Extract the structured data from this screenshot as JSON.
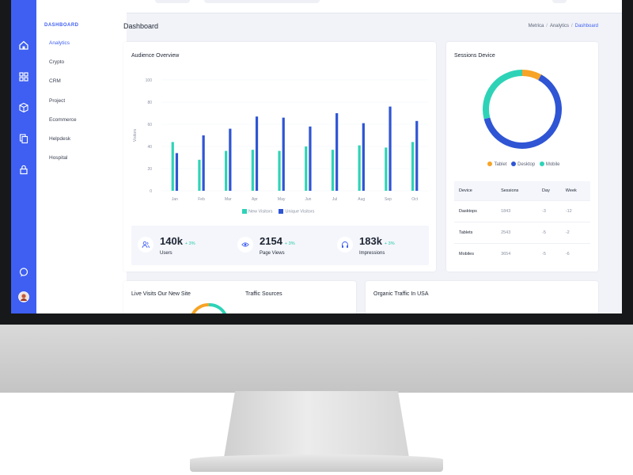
{
  "menu": {
    "section_label": "DASHBOARD",
    "items": [
      {
        "label": "Analytics",
        "active": true
      },
      {
        "label": "Crypto"
      },
      {
        "label": "CRM"
      },
      {
        "label": "Project"
      },
      {
        "label": "Ecommerce"
      },
      {
        "label": "Helpdesk"
      },
      {
        "label": "Hospital"
      }
    ]
  },
  "rail_icons": [
    "home-icon",
    "grid-icon",
    "box-icon",
    "copy-icon",
    "lock-icon",
    "chat-icon",
    "avatar"
  ],
  "header": {
    "title": "Dashboard",
    "breadcrumbs": [
      "Metrica",
      "Analytics",
      "Dashboard"
    ]
  },
  "audience": {
    "title": "Audience Overview",
    "chart_data": {
      "type": "bar",
      "categories": [
        "Jan",
        "Feb",
        "Mar",
        "Apr",
        "May",
        "Jun",
        "Jul",
        "Aug",
        "Sep",
        "Oct"
      ],
      "ylabel": "Visitors",
      "yticks": [
        0,
        20,
        40,
        60,
        80,
        100
      ],
      "ylim": [
        0,
        100
      ],
      "series": [
        {
          "name": "New Visitors",
          "color": "#2ed3b7",
          "values": [
            44,
            28,
            36,
            37,
            36,
            40,
            37,
            41,
            39,
            44
          ]
        },
        {
          "name": "Unique Visitors",
          "color": "#2f55d4",
          "values": [
            34,
            50,
            56,
            67,
            66,
            58,
            70,
            61,
            76,
            63
          ]
        }
      ],
      "legend": "bottom"
    }
  },
  "kpis": [
    {
      "icon": "users-icon",
      "value": "140k",
      "change": "+ 3%",
      "label": "Users"
    },
    {
      "icon": "eye-icon",
      "value": "2154",
      "change": "+ 3%",
      "label": "Page Views"
    },
    {
      "icon": "headphones-icon",
      "value": "183k",
      "change": "+ 3%",
      "label": "Impressions"
    }
  ],
  "sessions": {
    "title": "Sessions Device",
    "chart_data": {
      "type": "pie",
      "categories": [
        "Tablet",
        "Desktop",
        "Mobile"
      ],
      "values": [
        8,
        63,
        29
      ],
      "colors": [
        "#f7a325",
        "#2f55d4",
        "#2ed3b7"
      ],
      "legend": "bottom"
    },
    "table": {
      "headers": [
        "Device",
        "Sessions",
        "Day",
        "Week"
      ],
      "rows": [
        [
          "Dasktops",
          "1843",
          "-3",
          "-12"
        ],
        [
          "Tablets",
          "2543",
          "-5",
          "-2"
        ],
        [
          "Mobiles",
          "3654",
          "-5",
          "-6"
        ]
      ]
    }
  },
  "bottom_cards": {
    "live_visits": "Live Visits Our New Site",
    "traffic_sources": "Traffic Sources",
    "organic": "Organic Traffic In USA"
  }
}
